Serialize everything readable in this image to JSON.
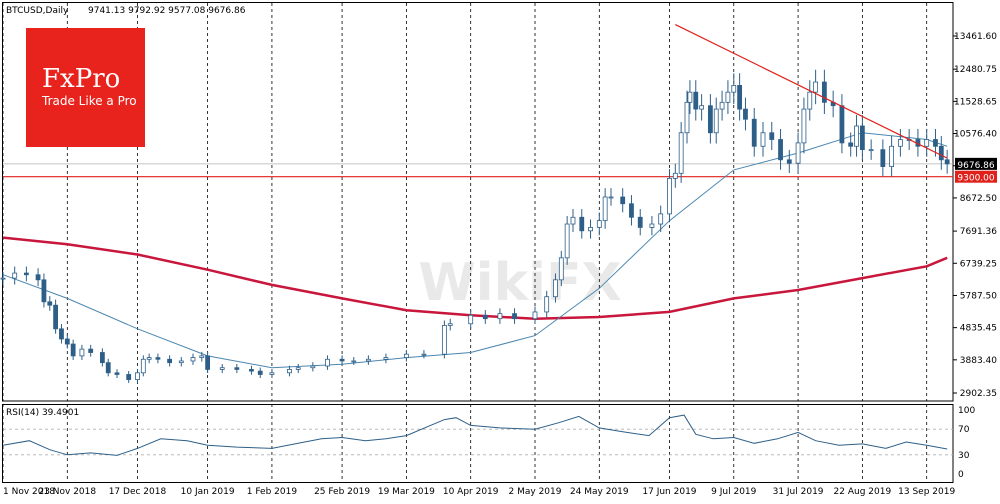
{
  "chart_data": [
    {
      "type": "candlestick",
      "symbol_label": "BTCUSD,Daily",
      "ohlc_label": "9741.13 9792.92 9577.08 9676.86",
      "last_price_label": "9676.86",
      "support_label": "9300.00",
      "support_level": 9300,
      "x_tick_labels": [
        "1 Nov 2018",
        "23 Nov 2018",
        "17 Dec 2018",
        "10 Jan 2019",
        "1 Feb 2019",
        "25 Feb 2019",
        "19 Mar 2019",
        "10 Apr 2019",
        "2 May 2019",
        "24 May 2019",
        "17 Jun 2019",
        "9 Jul 2019",
        "31 Jul 2019",
        "22 Aug 2019",
        "13 Sep 2019"
      ],
      "y_tick_labels": [
        "13461.60",
        "12480.75",
        "11528.65",
        "10576.40",
        "9624.25",
        "8672.50",
        "7691.36",
        "6739.25",
        "5787.50",
        "4835.45",
        "3883.40",
        "2902.35"
      ],
      "y_ticks": [
        13461.6,
        12480.75,
        11528.65,
        10576.4,
        9624.25,
        8672.5,
        7691.36,
        6739.25,
        5787.5,
        4835.45,
        3883.4,
        2902.35
      ],
      "ylim": [
        2902.35,
        14000
      ],
      "trendline": {
        "from": {
          "x": "19 Jun 2019",
          "y": 13800
        },
        "to": {
          "x": "20 Sep 2019",
          "y": 9850
        }
      },
      "close_series": {
        "x": [
          "1 Nov 2018",
          "5 Nov 2018",
          "9 Nov 2018",
          "13 Nov 2018",
          "15 Nov 2018",
          "17 Nov 2018",
          "19 Nov 2018",
          "21 Nov 2018",
          "23 Nov 2018",
          "25 Nov 2018",
          "28 Nov 2018",
          "1 Dec 2018",
          "5 Dec 2018",
          "7 Dec 2018",
          "10 Dec 2018",
          "14 Dec 2018",
          "17 Dec 2018",
          "19 Dec 2018",
          "21 Dec 2018",
          "24 Dec 2018",
          "28 Dec 2018",
          "1 Jan 2019",
          "5 Jan 2019",
          "8 Jan 2019",
          "10 Jan 2019",
          "15 Jan 2019",
          "20 Jan 2019",
          "25 Jan 2019",
          "28 Jan 2019",
          "1 Feb 2019",
          "7 Feb 2019",
          "10 Feb 2019",
          "15 Feb 2019",
          "20 Feb 2019",
          "25 Feb 2019",
          "1 Mar 2019",
          "6 Mar 2019",
          "12 Mar 2019",
          "19 Mar 2019",
          "25 Mar 2019",
          "1 Apr 2019",
          "3 Apr 2019",
          "10 Apr 2019",
          "15 Apr 2019",
          "20 Apr 2019",
          "25 Apr 2019",
          "2 May 2019",
          "6 May 2019",
          "9 May 2019",
          "11 May 2019",
          "13 May 2019",
          "15 May 2019",
          "18 May 2019",
          "21 May 2019",
          "24 May 2019",
          "26 May 2019",
          "28 May 2019",
          "1 Jun 2019",
          "4 Jun 2019",
          "7 Jun 2019",
          "11 Jun 2019",
          "14 Jun 2019",
          "17 Jun 2019",
          "19 Jun 2019",
          "21 Jun 2019",
          "23 Jun 2019",
          "24 Jun 2019",
          "26 Jun 2019",
          "28 Jun 2019",
          "1 Jul 2019",
          "3 Jul 2019",
          "5 Jul 2019",
          "7 Jul 2019",
          "9 Jul 2019",
          "11 Jul 2019",
          "13 Jul 2019",
          "16 Jul 2019",
          "19 Jul 2019",
          "22 Jul 2019",
          "25 Jul 2019",
          "28 Jul 2019",
          "31 Jul 2019",
          "2 Aug 2019",
          "4 Aug 2019",
          "6 Aug 2019",
          "9 Aug 2019",
          "12 Aug 2019",
          "15 Aug 2019",
          "18 Aug 2019",
          "20 Aug 2019",
          "22 Aug 2019",
          "25 Aug 2019",
          "29 Aug 2019",
          "1 Sep 2019",
          "4 Sep 2019",
          "7 Sep 2019",
          "10 Sep 2019",
          "13 Sep 2019",
          "16 Sep 2019",
          "18 Sep 2019",
          "20 Sep 2019"
        ],
        "y": [
          6300,
          6450,
          6400,
          6250,
          5600,
          5500,
          4800,
          4500,
          4350,
          4000,
          4200,
          4100,
          3800,
          3500,
          3450,
          3300,
          3500,
          3900,
          3950,
          3900,
          3800,
          3850,
          3950,
          4000,
          3600,
          3650,
          3600,
          3550,
          3450,
          3500,
          3600,
          3650,
          3700,
          3900,
          3850,
          3850,
          3900,
          3950,
          4050,
          4050,
          4900,
          4950,
          5200,
          5100,
          5250,
          5100,
          5300,
          5750,
          6250,
          6900,
          7900,
          8100,
          7700,
          7800,
          8000,
          8700,
          8700,
          8500,
          8100,
          7800,
          7900,
          8200,
          9250,
          9400,
          10600,
          11500,
          11800,
          11300,
          11400,
          10600,
          11300,
          11500,
          11800,
          12000,
          11300,
          11000,
          10200,
          10600,
          10400,
          9800,
          9700,
          10300,
          11300,
          11800,
          12100,
          11500,
          11400,
          10300,
          10200,
          10800,
          10100,
          10100,
          9600,
          10200,
          10400,
          10400,
          10200,
          10400,
          10200,
          9800,
          9680
        ]
      },
      "ma_fast": {
        "x": [
          "1 Nov 2018",
          "23 Nov 2018",
          "17 Dec 2018",
          "10 Jan 2019",
          "1 Feb 2019",
          "25 Feb 2019",
          "19 Mar 2019",
          "10 Apr 2019",
          "2 May 2019",
          "24 May 2019",
          "17 Jun 2019",
          "9 Jul 2019",
          "31 Jul 2019",
          "22 Aug 2019",
          "13 Sep 2019",
          "20 Sep 2019"
        ],
        "y": [
          6400,
          5700,
          4800,
          4000,
          3650,
          3750,
          3950,
          4100,
          4600,
          6000,
          8000,
          9500,
          10000,
          10600,
          10400,
          10200
        ]
      },
      "ma_slow": {
        "x": [
          "1 Nov 2018",
          "23 Nov 2018",
          "17 Dec 2018",
          "10 Jan 2019",
          "1 Feb 2019",
          "25 Feb 2019",
          "19 Mar 2019",
          "10 Apr 2019",
          "2 May 2019",
          "24 May 2019",
          "17 Jun 2019",
          "9 Jul 2019",
          "31 Jul 2019",
          "22 Aug 2019",
          "13 Sep 2019",
          "20 Sep 2019"
        ],
        "y": [
          7500,
          7300,
          7000,
          6550,
          6100,
          5700,
          5350,
          5200,
          5100,
          5150,
          5300,
          5700,
          5950,
          6300,
          6650,
          6900
        ]
      },
      "colors": {
        "candles": "#2e5f88",
        "ma_fast": "#4a86b0",
        "ma_slow": "#c8163c",
        "trendline": "#e0201b",
        "support": "#e0201b",
        "last_price_line": "#b0b0b0"
      }
    },
    {
      "type": "line",
      "name_label": "RSI(14) 39.4901",
      "y_tick_labels": [
        "100",
        "70",
        "30",
        "0"
      ],
      "y_ticks": [
        100,
        70,
        30,
        0
      ],
      "ylim": [
        0,
        100
      ],
      "levels": [
        70,
        30
      ],
      "values": {
        "x": [
          "1 Nov 2018",
          "10 Nov 2018",
          "17 Nov 2018",
          "23 Nov 2018",
          "1 Dec 2018",
          "10 Dec 2018",
          "17 Dec 2018",
          "25 Dec 2018",
          "3 Jan 2019",
          "10 Jan 2019",
          "20 Jan 2019",
          "1 Feb 2019",
          "10 Feb 2019",
          "18 Feb 2019",
          "25 Feb 2019",
          "5 Mar 2019",
          "12 Mar 2019",
          "19 Mar 2019",
          "1 Apr 2019",
          "5 Apr 2019",
          "10 Apr 2019",
          "20 Apr 2019",
          "2 May 2019",
          "10 May 2019",
          "17 May 2019",
          "24 May 2019",
          "1 Jun 2019",
          "10 Jun 2019",
          "17 Jun 2019",
          "22 Jun 2019",
          "26 Jun 2019",
          "2 Jul 2019",
          "9 Jul 2019",
          "16 Jul 2019",
          "24 Jul 2019",
          "31 Jul 2019",
          "6 Aug 2019",
          "14 Aug 2019",
          "22 Aug 2019",
          "30 Aug 2019",
          "6 Sep 2019",
          "13 Sep 2019",
          "20 Sep 2019"
        ],
        "y": [
          45,
          52,
          38,
          30,
          33,
          29,
          40,
          55,
          52,
          45,
          42,
          40,
          48,
          55,
          57,
          52,
          55,
          60,
          85,
          88,
          76,
          72,
          70,
          80,
          90,
          72,
          66,
          60,
          88,
          92,
          62,
          55,
          57,
          48,
          55,
          65,
          52,
          45,
          47,
          40,
          50,
          45,
          39
        ]
      },
      "colors": {
        "line": "#2e5f88",
        "levels": "#b0b0b0"
      }
    }
  ],
  "logo": {
    "brand": "FxPro",
    "slogan": "Trade Like a Pro"
  },
  "watermark": {
    "text": "WikiFX"
  }
}
